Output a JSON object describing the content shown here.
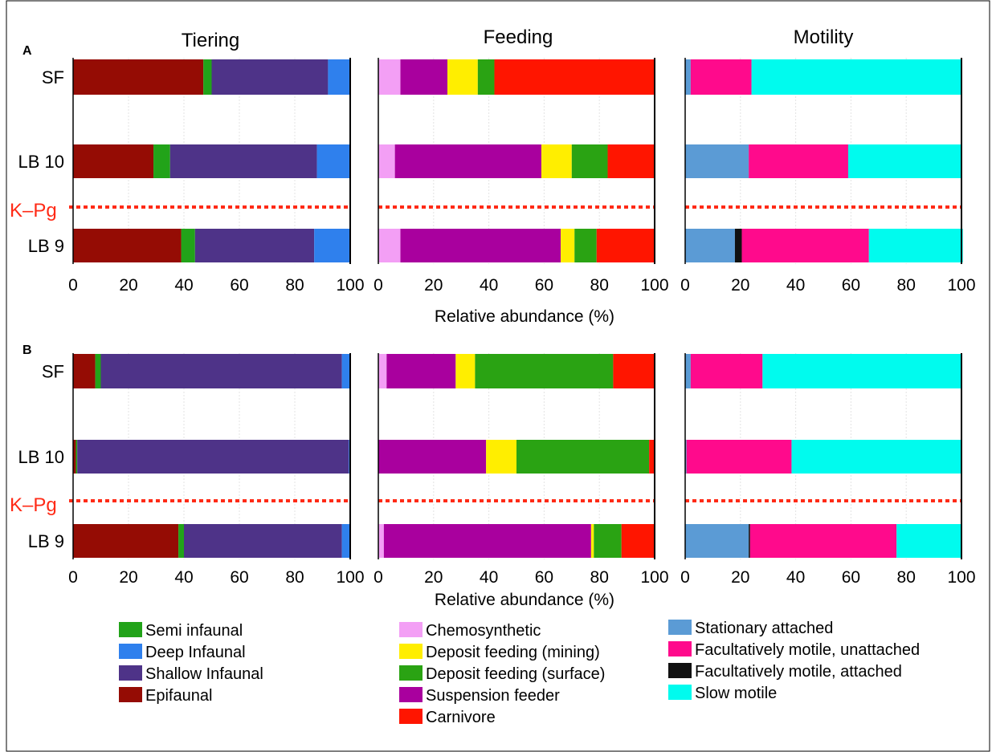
{
  "panel_titles": [
    "Tiering",
    "Feeding",
    "Motility"
  ],
  "panel_letters": [
    "A",
    "B"
  ],
  "xlabel": "Relative abundance (%)",
  "boundary_label": "K–Pg",
  "ticks": [
    "0",
    "20",
    "40",
    "60",
    "80",
    "100"
  ],
  "categories": [
    "SF",
    "LB 10",
    "LB 9"
  ],
  "colors": {
    "Semi infaunal": "#22a319",
    "Deep Infaunal": "#2f80ed",
    "Shallow Infaunal": "#4e3388",
    "Epifaunal": "#950c04",
    "Chemosynthetic": "#f39ff5",
    "Deposit feeding (mining)": "#ffee00",
    "Deposit feeding (surface)": "#2aa313",
    "Suspension feeder": "#a9009e",
    "Carnivore": "#ff1500",
    "Stationary attached": "#5b9bd5",
    "Facultatively motile, unattached": "#ff0a8c",
    "Facultatively motile, attached": "#111111",
    "Slow motile": "#00fbee",
    "boundary": "#ff2a16"
  },
  "legend": [
    [
      "Semi infaunal",
      "Deep Infaunal",
      "Shallow Infaunal",
      "Epifaunal"
    ],
    [
      "Chemosynthetic",
      "Deposit feeding (mining)",
      "Deposit feeding (surface)",
      "Suspension feeder",
      "Carnivore"
    ],
    [
      "Stationary attached",
      "Facultatively motile, unattached",
      "Facultatively motile, attached",
      "Slow motile"
    ]
  ],
  "chart_data": [
    {
      "type": "bar",
      "stacked": true,
      "orientation": "horizontal",
      "panel": "A",
      "title": "Tiering",
      "xlim": [
        0,
        100
      ],
      "categories": [
        "SF",
        "LB 10",
        "LB 9"
      ],
      "series": [
        {
          "name": "Epifaunal",
          "values": [
            47,
            29,
            39
          ]
        },
        {
          "name": "Semi infaunal",
          "values": [
            3,
            6,
            5
          ]
        },
        {
          "name": "Shallow Infaunal",
          "values": [
            42,
            53,
            43
          ]
        },
        {
          "name": "Deep Infaunal",
          "values": [
            8,
            12,
            13
          ]
        }
      ]
    },
    {
      "type": "bar",
      "stacked": true,
      "orientation": "horizontal",
      "panel": "A",
      "title": "Feeding",
      "xlim": [
        0,
        100
      ],
      "categories": [
        "SF",
        "LB 10",
        "LB 9"
      ],
      "series": [
        {
          "name": "Chemosynthetic",
          "values": [
            8,
            6,
            8
          ]
        },
        {
          "name": "Suspension feeder",
          "values": [
            17,
            53,
            58
          ]
        },
        {
          "name": "Deposit feeding (mining)",
          "values": [
            11,
            11,
            5
          ]
        },
        {
          "name": "Deposit feeding (surface)",
          "values": [
            6,
            13,
            8
          ]
        },
        {
          "name": "Carnivore",
          "values": [
            58,
            17,
            21
          ]
        }
      ]
    },
    {
      "type": "bar",
      "stacked": true,
      "orientation": "horizontal",
      "panel": "A",
      "title": "Motility",
      "xlim": [
        0,
        100
      ],
      "categories": [
        "SF",
        "LB 10",
        "LB 9"
      ],
      "series": [
        {
          "name": "Stationary attached",
          "values": [
            2,
            23,
            18
          ]
        },
        {
          "name": "Facultatively motile, attached",
          "values": [
            0,
            0,
            2.5
          ]
        },
        {
          "name": "Facultatively motile, unattached",
          "values": [
            22,
            36,
            46
          ]
        },
        {
          "name": "Slow motile",
          "values": [
            76,
            41,
            34
          ]
        }
      ]
    },
    {
      "type": "bar",
      "stacked": true,
      "orientation": "horizontal",
      "panel": "B",
      "title": "Tiering",
      "xlim": [
        0,
        100
      ],
      "categories": [
        "SF",
        "LB 10",
        "LB 9"
      ],
      "series": [
        {
          "name": "Epifaunal",
          "values": [
            8,
            1,
            38
          ]
        },
        {
          "name": "Semi infaunal",
          "values": [
            2,
            0.5,
            2
          ]
        },
        {
          "name": "Shallow Infaunal",
          "values": [
            87,
            98,
            57
          ]
        },
        {
          "name": "Deep Infaunal",
          "values": [
            3,
            0.5,
            3
          ]
        }
      ]
    },
    {
      "type": "bar",
      "stacked": true,
      "orientation": "horizontal",
      "panel": "B",
      "title": "Feeding",
      "xlim": [
        0,
        100
      ],
      "categories": [
        "SF",
        "LB 10",
        "LB 9"
      ],
      "series": [
        {
          "name": "Chemosynthetic",
          "values": [
            3,
            0,
            2
          ]
        },
        {
          "name": "Suspension feeder",
          "values": [
            25,
            39,
            75
          ]
        },
        {
          "name": "Deposit feeding (mining)",
          "values": [
            7,
            11,
            1
          ]
        },
        {
          "name": "Deposit feeding (surface)",
          "values": [
            50,
            48,
            10
          ]
        },
        {
          "name": "Carnivore",
          "values": [
            15,
            2,
            12
          ]
        }
      ]
    },
    {
      "type": "bar",
      "stacked": true,
      "orientation": "horizontal",
      "panel": "B",
      "title": "Motility",
      "xlim": [
        0,
        100
      ],
      "categories": [
        "SF",
        "LB 10",
        "LB 9"
      ],
      "series": [
        {
          "name": "Stationary attached",
          "values": [
            2,
            0.5,
            23
          ]
        },
        {
          "name": "Facultatively motile, attached",
          "values": [
            0,
            0,
            0.5
          ]
        },
        {
          "name": "Facultatively motile, unattached",
          "values": [
            26,
            38,
            53
          ]
        },
        {
          "name": "Slow motile",
          "values": [
            72,
            61.5,
            23.5
          ]
        }
      ]
    }
  ]
}
